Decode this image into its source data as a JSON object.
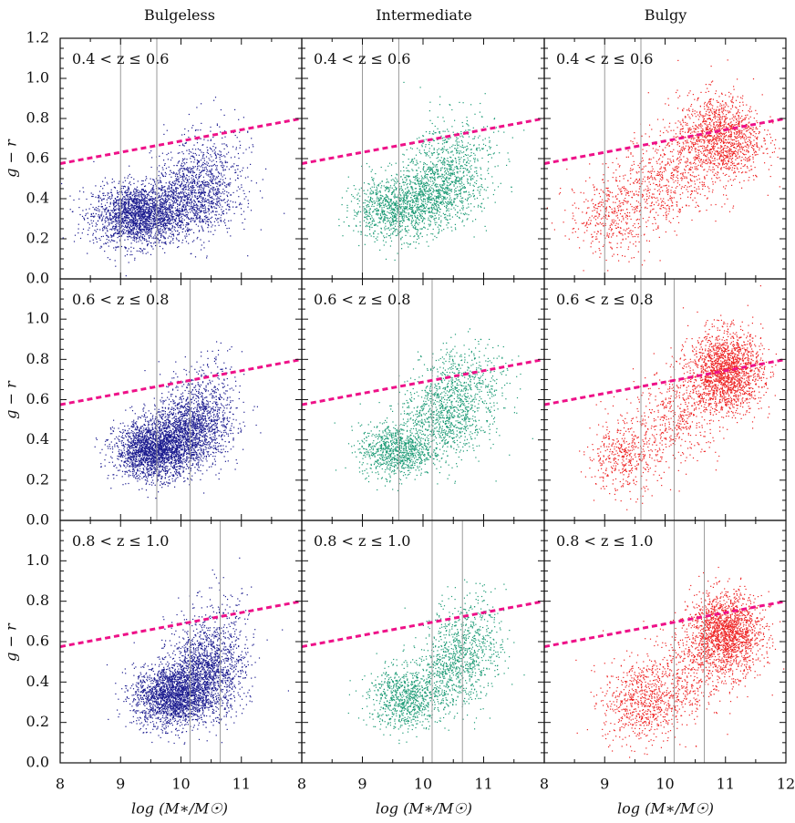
{
  "chart_data": {
    "type": "scatter",
    "columns": [
      {
        "title": "Bulgeless",
        "color": "#1b1b8f"
      },
      {
        "title": "Intermediate",
        "color": "#1a9a74"
      },
      {
        "title": "Bulgy",
        "color": "#ee2222"
      }
    ],
    "rows": [
      {
        "label": "0.4 < z ≤ 0.6",
        "vlines": [
          9.0,
          9.6
        ]
      },
      {
        "label": "0.6 < z ≤ 0.8",
        "vlines": [
          9.6,
          10.15
        ]
      },
      {
        "label": "0.8 < z ≤ 1.0",
        "vlines": [
          10.15,
          10.65
        ]
      }
    ],
    "xlabel": "log (M∗/M☉)",
    "ylabel": "g − r",
    "xlim": [
      8,
      12
    ],
    "ylim": [
      0.0,
      1.2
    ],
    "xticks": [
      8,
      9,
      10,
      11,
      12
    ],
    "xtick_labels": [
      "8",
      "9",
      "10",
      "11",
      "12"
    ],
    "xtick_labels_inner": [
      "8",
      "9",
      "10",
      "11"
    ],
    "yticks_top": [
      0.0,
      0.2,
      0.4,
      0.6,
      0.8,
      1.0,
      1.2
    ],
    "yticks_top_labels": [
      "0.0",
      "0.2",
      "0.4",
      "0.6",
      "0.8",
      "1.0",
      "1.2"
    ],
    "yticks_lower": [
      0.0,
      0.2,
      0.4,
      0.6,
      0.8,
      1.0
    ],
    "yticks_lower_labels": [
      "0.0",
      "0.2",
      "0.4",
      "0.6",
      "0.8",
      "1.0"
    ],
    "dividing_line": {
      "color": "#ee1188",
      "x": [
        8,
        12
      ],
      "y": [
        0.575,
        0.8
      ]
    },
    "vline_color": "#9a9a9a",
    "clusters": [
      [
        [
          {
            "cx": 9.3,
            "cy": 0.32,
            "sx": 0.38,
            "sy": 0.075,
            "n": 2200
          },
          {
            "cx": 10.2,
            "cy": 0.42,
            "sx": 0.35,
            "sy": 0.1,
            "n": 1100
          },
          {
            "cx": 10.5,
            "cy": 0.58,
            "sx": 0.35,
            "sy": 0.12,
            "n": 260
          }
        ],
        [
          {
            "cx": 9.5,
            "cy": 0.35,
            "sx": 0.35,
            "sy": 0.075,
            "n": 900
          },
          {
            "cx": 10.2,
            "cy": 0.43,
            "sx": 0.35,
            "sy": 0.09,
            "n": 850
          },
          {
            "cx": 10.5,
            "cy": 0.6,
            "sx": 0.35,
            "sy": 0.12,
            "n": 500
          }
        ],
        [
          {
            "cx": 9.1,
            "cy": 0.32,
            "sx": 0.35,
            "sy": 0.1,
            "n": 450
          },
          {
            "cx": 10.0,
            "cy": 0.5,
            "sx": 0.35,
            "sy": 0.12,
            "n": 500
          },
          {
            "cx": 10.9,
            "cy": 0.7,
            "sx": 0.35,
            "sy": 0.11,
            "n": 1400
          }
        ]
      ],
      [
        [
          {
            "cx": 9.55,
            "cy": 0.35,
            "sx": 0.32,
            "sy": 0.07,
            "n": 2200
          },
          {
            "cx": 10.15,
            "cy": 0.46,
            "sx": 0.32,
            "sy": 0.09,
            "n": 1400
          },
          {
            "cx": 10.4,
            "cy": 0.6,
            "sx": 0.3,
            "sy": 0.12,
            "n": 300
          }
        ],
        [
          {
            "cx": 9.55,
            "cy": 0.35,
            "sx": 0.3,
            "sy": 0.065,
            "n": 900
          },
          {
            "cx": 10.3,
            "cy": 0.5,
            "sx": 0.35,
            "sy": 0.1,
            "n": 800
          },
          {
            "cx": 10.7,
            "cy": 0.68,
            "sx": 0.35,
            "sy": 0.1,
            "n": 500
          }
        ],
        [
          {
            "cx": 9.3,
            "cy": 0.32,
            "sx": 0.3,
            "sy": 0.09,
            "n": 450
          },
          {
            "cx": 10.2,
            "cy": 0.52,
            "sx": 0.35,
            "sy": 0.11,
            "n": 450
          },
          {
            "cx": 11.0,
            "cy": 0.74,
            "sx": 0.3,
            "sy": 0.1,
            "n": 1800
          }
        ]
      ],
      [
        [
          {
            "cx": 9.85,
            "cy": 0.33,
            "sx": 0.32,
            "sy": 0.075,
            "n": 2000
          },
          {
            "cx": 10.4,
            "cy": 0.45,
            "sx": 0.32,
            "sy": 0.1,
            "n": 1300
          },
          {
            "cx": 10.6,
            "cy": 0.62,
            "sx": 0.3,
            "sy": 0.12,
            "n": 300
          }
        ],
        [
          {
            "cx": 9.7,
            "cy": 0.32,
            "sx": 0.3,
            "sy": 0.075,
            "n": 800
          },
          {
            "cx": 10.4,
            "cy": 0.45,
            "sx": 0.3,
            "sy": 0.1,
            "n": 500
          },
          {
            "cx": 10.75,
            "cy": 0.6,
            "sx": 0.3,
            "sy": 0.12,
            "n": 550
          }
        ],
        [
          {
            "cx": 9.6,
            "cy": 0.3,
            "sx": 0.32,
            "sy": 0.1,
            "n": 700
          },
          {
            "cx": 10.3,
            "cy": 0.45,
            "sx": 0.32,
            "sy": 0.12,
            "n": 400
          },
          {
            "cx": 11.0,
            "cy": 0.64,
            "sx": 0.3,
            "sy": 0.1,
            "n": 1800
          }
        ]
      ]
    ]
  }
}
